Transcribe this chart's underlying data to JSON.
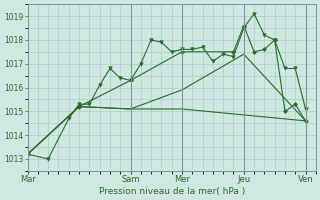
{
  "xlabel": "Pression niveau de la mer( hPa )",
  "ylim": [
    1012.5,
    1019.5
  ],
  "yticks": [
    1013,
    1014,
    1015,
    1016,
    1017,
    1018,
    1019
  ],
  "bg_color": "#cfe8e2",
  "grid_color": "#a8cfc8",
  "line_color": "#2d6a2d",
  "vline_color": "#7a9a95",
  "x_day_labels": [
    "Mar",
    "Sam",
    "Mer",
    "Jeu",
    "Ven"
  ],
  "x_day_positions": [
    0,
    10,
    15,
    21,
    27
  ],
  "series1": {
    "x": [
      0,
      2,
      4,
      5,
      6,
      7,
      8,
      9,
      10,
      11,
      12,
      13,
      14,
      15,
      16,
      17,
      18,
      19,
      20,
      21,
      22,
      23,
      24,
      25,
      26,
      27
    ],
    "y": [
      1013.2,
      1013.0,
      1014.7,
      1015.3,
      1015.3,
      1016.1,
      1016.8,
      1016.4,
      1016.3,
      1017.0,
      1018.0,
      1017.9,
      1017.5,
      1017.6,
      1017.6,
      1017.7,
      1017.1,
      1017.4,
      1017.3,
      1018.5,
      1019.1,
      1018.2,
      1018.0,
      1016.8,
      1016.8,
      1015.1
    ]
  },
  "series2": {
    "x": [
      0,
      5,
      10,
      15,
      20,
      21,
      22,
      23,
      24,
      25,
      26,
      27
    ],
    "y": [
      1013.2,
      1015.2,
      1016.3,
      1017.5,
      1017.5,
      1018.6,
      1017.5,
      1017.6,
      1018.0,
      1015.0,
      1015.3,
      1014.6
    ]
  },
  "series3": {
    "x": [
      0,
      5,
      10,
      15,
      27
    ],
    "y": [
      1013.2,
      1015.2,
      1015.1,
      1015.1,
      1014.6
    ]
  },
  "series4": {
    "x": [
      0,
      5,
      10,
      15,
      21,
      27
    ],
    "y": [
      1013.2,
      1015.2,
      1015.1,
      1015.9,
      1017.4,
      1014.6
    ]
  }
}
